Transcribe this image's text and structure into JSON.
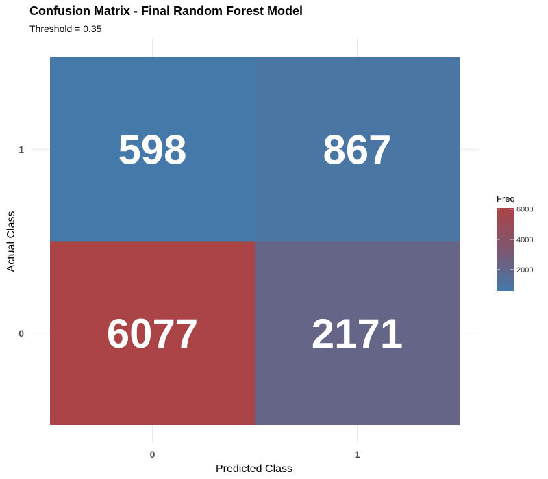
{
  "chart_data": {
    "type": "heatmap",
    "title": "Confusion Matrix - Final Random Forest Model",
    "subtitle": "Threshold = 0.35",
    "xlabel": "Predicted Class",
    "ylabel": "Actual Class",
    "x_categories": [
      "0",
      "1"
    ],
    "y_categories": [
      "0",
      "1"
    ],
    "cells": [
      {
        "predicted": "0",
        "actual": "1",
        "value": 598
      },
      {
        "predicted": "1",
        "actual": "1",
        "value": 867
      },
      {
        "predicted": "0",
        "actual": "0",
        "value": 6077
      },
      {
        "predicted": "1",
        "actual": "0",
        "value": 2171
      }
    ],
    "legend": {
      "title": "Freq",
      "ticks": [
        2000,
        4000,
        6000
      ],
      "low_color": "#4479a9",
      "high_color": "#ab4446",
      "range": [
        598,
        6077
      ],
      "placement": "right"
    },
    "grid": true
  }
}
